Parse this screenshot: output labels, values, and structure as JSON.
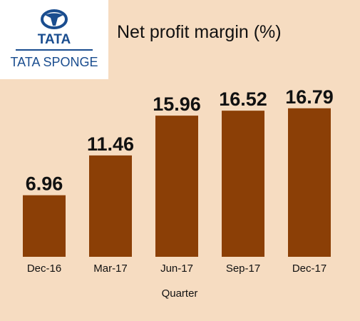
{
  "logo": {
    "brand": "TATA",
    "company": "TATA SPONGE"
  },
  "colors": {
    "background": "#f6dcc1",
    "bar": "#8b3f06",
    "brand_blue": "#1a4d8f"
  },
  "chart_data": {
    "type": "bar",
    "title": "Net profit margin (%)",
    "xlabel": "Quarter",
    "ylabel": "",
    "categories": [
      "Dec-16",
      "Mar-17",
      "Jun-17",
      "Sep-17",
      "Dec-17"
    ],
    "values": [
      6.96,
      11.46,
      15.96,
      16.52,
      16.79
    ],
    "value_labels": [
      "6.96",
      "11.46",
      "15.96",
      "16.52",
      "16.79"
    ],
    "ylim": [
      0,
      20
    ],
    "grid": false,
    "legend": "none"
  }
}
